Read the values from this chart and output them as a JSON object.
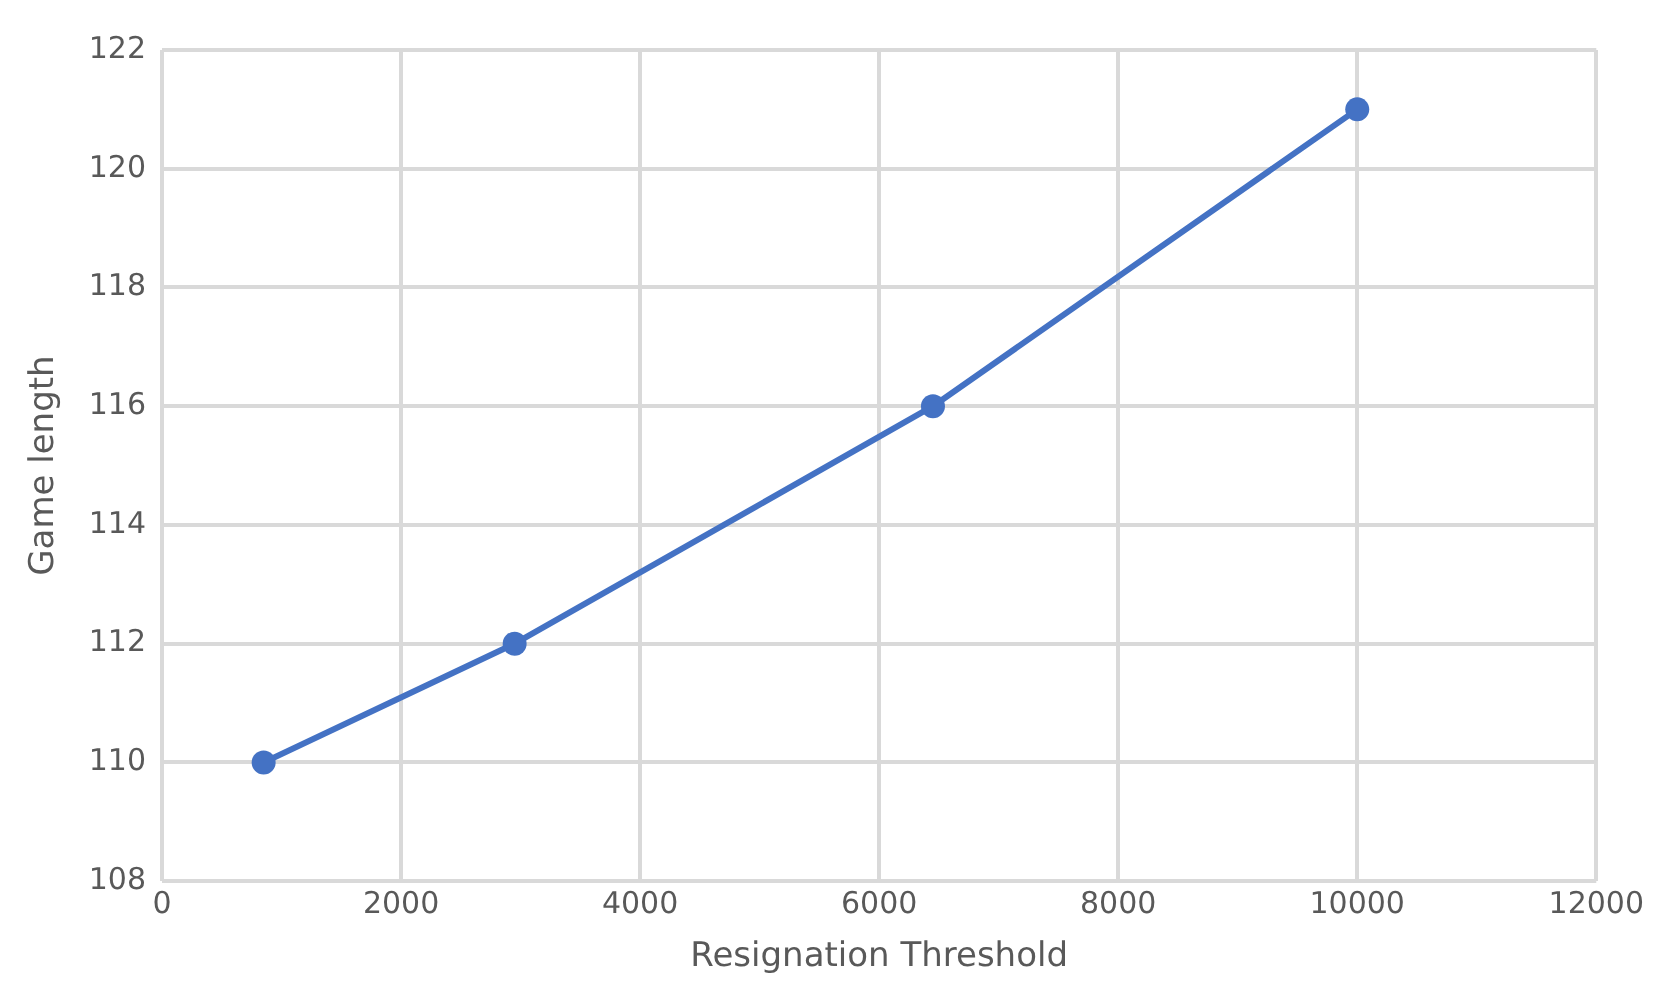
{
  "chart_data": {
    "type": "line",
    "xlabel": "Resignation Threshold",
    "ylabel": "Game length",
    "x": [
      850,
      2950,
      6450,
      10000
    ],
    "series": [
      {
        "color": "#4472c4",
        "values": [
          110,
          112,
          116,
          121
        ]
      }
    ],
    "xlim": [
      0,
      12000
    ],
    "xticks": [
      0,
      2000,
      4000,
      6000,
      8000,
      10000,
      12000
    ],
    "ylim": [
      108,
      122
    ],
    "yticks": [
      108,
      110,
      112,
      114,
      116,
      118,
      120,
      122
    ],
    "grid": true,
    "marker": "circle",
    "line_style": "solid",
    "legend": false
  }
}
